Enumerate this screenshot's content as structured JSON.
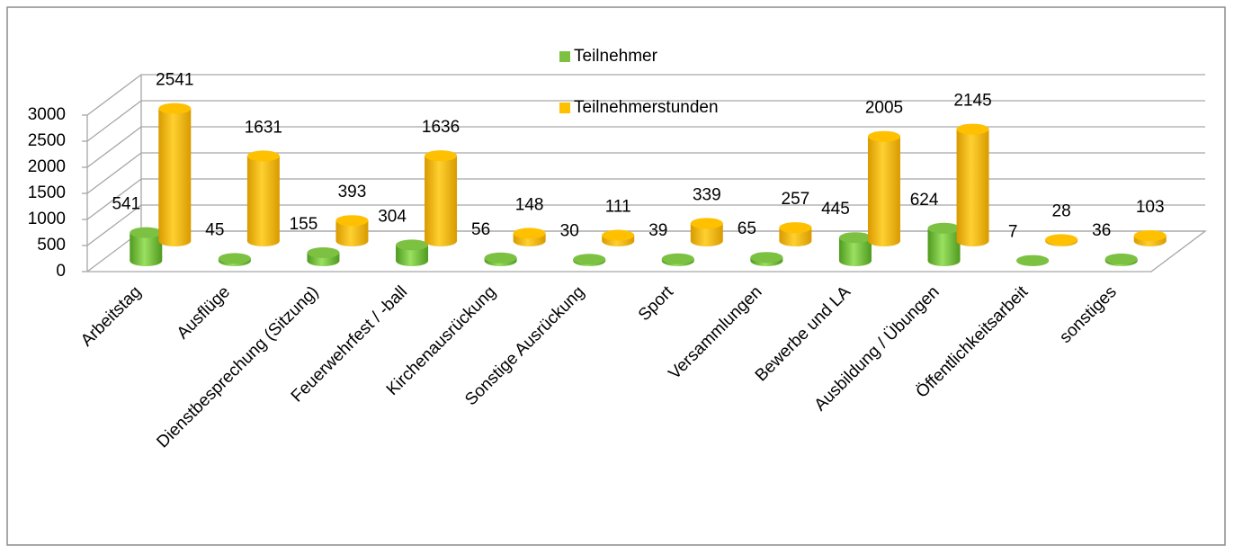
{
  "chart_data": {
    "type": "bar3d",
    "categories": [
      "Arbeitstag",
      "Ausflüge",
      "Dienstbesprechung (Sitzung)",
      "Feuerwehrfest / -ball",
      "Kirchenausrückung",
      "Sonstige Ausrückung",
      "Sport",
      "Versammlungen",
      "Bewerbe und LA",
      "Ausbildung / Übungen",
      "Öffentlichkeitsarbeit",
      "sonstiges"
    ],
    "series": [
      {
        "name": "Teilnehmer",
        "color": "#7cc142",
        "values": [
          541,
          45,
          155,
          304,
          56,
          30,
          39,
          65,
          445,
          624,
          7,
          36
        ]
      },
      {
        "name": "Teilnehmerstunden",
        "color": "#ffc000",
        "values": [
          2541,
          1631,
          393,
          1636,
          148,
          111,
          339,
          257,
          2005,
          2145,
          28,
          103
        ]
      }
    ],
    "ylim": [
      0,
      3000
    ],
    "yticks": [
      0,
      500,
      1000,
      1500,
      2000,
      2500,
      3000
    ],
    "grid": true,
    "legend": "top"
  }
}
